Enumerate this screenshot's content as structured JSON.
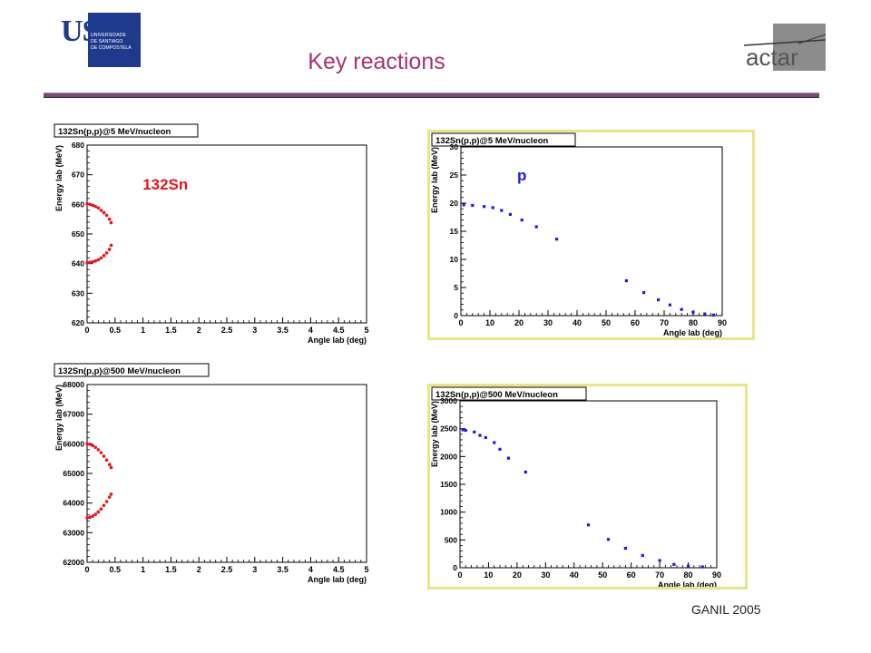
{
  "header": {
    "title": "Key reactions",
    "left_logo": {
      "letters": "USC",
      "line1": "UNIVERSIDADE",
      "line2": "DE SANTIAGO",
      "line3": "DE COMPOSTELA"
    },
    "right_logo": {
      "text": "actar"
    }
  },
  "footer": {
    "text": "GANIL 2005"
  },
  "colors": {
    "title": "#a8336b",
    "red_series": "#e8141c",
    "blue_series": "#1a1ae0",
    "frame_yellow": "#e8e48a",
    "usc_blue": "#1f3a8c"
  },
  "chart_data": [
    {
      "type": "scatter",
      "title": "132Sn(p,p)@5 MeV/nucleon",
      "xlabel": "Angle lab (deg)",
      "ylabel": "Energy lab (MeV)",
      "xlim": [
        0,
        5
      ],
      "ylim": [
        620,
        680
      ],
      "xticks": [
        0,
        0.5,
        1,
        1.5,
        2,
        2.5,
        3,
        3.5,
        4,
        4.5,
        5
      ],
      "xtick_labels": [
        "0",
        "0.5",
        "1",
        "1.5",
        "2",
        "2.5",
        "3",
        "3.5",
        "4",
        "4.5",
        "5"
      ],
      "yticks": [
        620,
        630,
        640,
        650,
        660,
        670,
        680
      ],
      "ytick_labels": [
        "620",
        "630",
        "640",
        "650",
        "660",
        "670",
        "680"
      ],
      "annotation": "132Sn",
      "series": [
        {
          "color": "#e8141c",
          "x": [
            0,
            0.05,
            0.1,
            0.15,
            0.2,
            0.25,
            0.3,
            0.35,
            0.4,
            0.43,
            0.0,
            0.05,
            0.1,
            0.15,
            0.2,
            0.25,
            0.3,
            0.35,
            0.4,
            0.43
          ],
          "y": [
            660.2,
            660.0,
            659.7,
            659.3,
            658.8,
            658.0,
            657.2,
            656.3,
            655.0,
            653.8,
            640.3,
            640.4,
            640.6,
            640.9,
            641.3,
            641.9,
            642.7,
            643.6,
            644.8,
            646.2
          ]
        }
      ]
    },
    {
      "type": "scatter",
      "title": "132Sn(p,p)@5 MeV/nucleon",
      "xlabel": "Angle lab (deg)",
      "ylabel": "Energy lab (MeV)",
      "xlim": [
        0,
        90
      ],
      "ylim": [
        0,
        30
      ],
      "xticks": [
        0,
        10,
        20,
        30,
        40,
        50,
        60,
        70,
        80,
        90
      ],
      "xtick_labels": [
        "0",
        "10",
        "20",
        "30",
        "40",
        "50",
        "60",
        "70",
        "80",
        "90"
      ],
      "yticks": [
        0,
        5,
        10,
        15,
        20,
        25,
        30
      ],
      "ytick_labels": [
        "0",
        "5",
        "10",
        "15",
        "20",
        "25",
        "30"
      ],
      "annotation": "p",
      "series": [
        {
          "color": "#1a1ae0",
          "x": [
            1,
            4,
            8,
            11,
            14,
            17,
            21,
            26,
            33,
            57,
            63,
            68,
            72,
            76,
            80,
            84,
            87
          ],
          "y": [
            19.7,
            19.6,
            19.4,
            19.2,
            18.7,
            18.0,
            17.0,
            15.8,
            13.6,
            6.2,
            4.1,
            2.8,
            1.9,
            1.1,
            0.6,
            0.3,
            0.1
          ]
        }
      ]
    },
    {
      "type": "scatter",
      "title": "132Sn(p,p)@500 MeV/nucleon",
      "xlabel": "Angle lab (deg)",
      "ylabel": "Energy lab (MeV)",
      "xlim": [
        0,
        5
      ],
      "ylim": [
        62000,
        68000
      ],
      "xticks": [
        0,
        0.5,
        1,
        1.5,
        2,
        2.5,
        3,
        3.5,
        4,
        4.5,
        5
      ],
      "xtick_labels": [
        "0",
        "0.5",
        "1",
        "1.5",
        "2",
        "2.5",
        "3",
        "3.5",
        "4",
        "4.5",
        "5"
      ],
      "yticks": [
        62000,
        63000,
        64000,
        65000,
        66000,
        67000,
        68000
      ],
      "ytick_labels": [
        "62000",
        "63000",
        "64000",
        "65000",
        "66000",
        "67000",
        "68000"
      ],
      "series": [
        {
          "color": "#e8141c",
          "x": [
            0,
            0.05,
            0.1,
            0.15,
            0.2,
            0.25,
            0.3,
            0.35,
            0.4,
            0.43,
            0.0,
            0.05,
            0.1,
            0.15,
            0.2,
            0.25,
            0.3,
            0.35,
            0.4,
            0.43
          ],
          "y": [
            66000,
            65980,
            65940,
            65880,
            65800,
            65700,
            65580,
            65450,
            65300,
            65200,
            63500,
            63520,
            63560,
            63620,
            63700,
            63800,
            63920,
            64050,
            64200,
            64300
          ]
        }
      ]
    },
    {
      "type": "scatter",
      "title": "132Sn(p,p)@500 MeV/nucleon",
      "xlabel": "Angle lab (deg)",
      "ylabel": "Energy lab (MeV)",
      "xlim": [
        0,
        90
      ],
      "ylim": [
        0,
        3000
      ],
      "xticks": [
        0,
        10,
        20,
        30,
        40,
        50,
        60,
        70,
        80,
        90
      ],
      "xtick_labels": [
        "0",
        "10",
        "20",
        "30",
        "40",
        "50",
        "60",
        "70",
        "80",
        "90"
      ],
      "yticks": [
        0,
        500,
        1000,
        1500,
        2000,
        2500,
        3000
      ],
      "ytick_labels": [
        "0",
        "500",
        "1000",
        "1500",
        "2000",
        "2500",
        "3000"
      ],
      "series": [
        {
          "color": "#1a1ae0",
          "x": [
            1,
            2,
            5,
            7,
            9,
            12,
            14,
            17,
            23,
            45,
            52,
            58,
            64,
            70,
            75,
            80,
            85
          ],
          "y": [
            2480,
            2470,
            2440,
            2380,
            2340,
            2250,
            2130,
            1970,
            1720,
            770,
            510,
            350,
            220,
            130,
            60,
            30,
            15
          ]
        }
      ]
    }
  ]
}
